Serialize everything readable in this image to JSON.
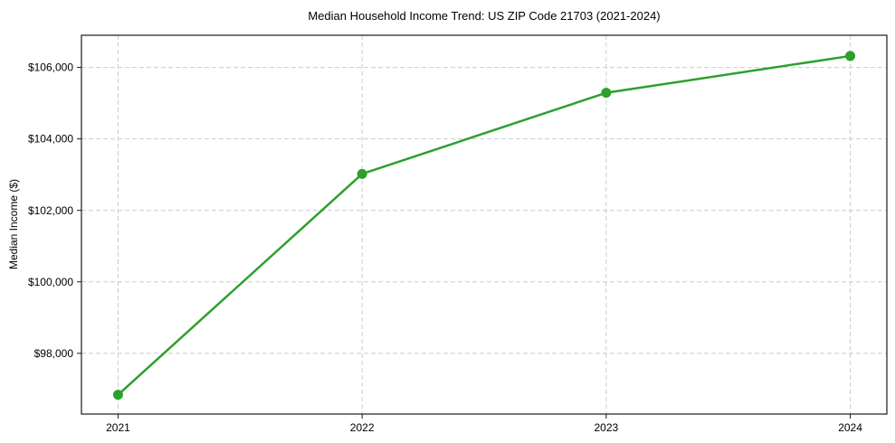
{
  "figure": {
    "background": "#ffffff"
  },
  "chart_data": {
    "type": "line",
    "title": "Median Household Income Trend: US ZIP Code 21703 (2021-2024)",
    "xlabel": "",
    "ylabel": "Median Income ($)",
    "x": [
      2021,
      2022,
      2023,
      2024
    ],
    "x_tick_labels": [
      "2021",
      "2022",
      "2023",
      "2024"
    ],
    "series": [
      {
        "name": "Median Household Income",
        "values": [
          96840,
          103020,
          105290,
          106320
        ]
      }
    ],
    "y_ticks": [
      {
        "value": 98000,
        "label": "$98,000"
      },
      {
        "value": 100000,
        "label": "$100,000"
      },
      {
        "value": 102000,
        "label": "$102,000"
      },
      {
        "value": 104000,
        "label": "$104,000"
      },
      {
        "value": 106000,
        "label": "$106,000"
      }
    ],
    "xlim": [
      2020.85,
      2024.15
    ],
    "ylim": [
      96300,
      106900
    ],
    "grid": true,
    "legend": "none",
    "line_color": "#2ca02c",
    "marker": "circle",
    "grid_color": "#cccccc",
    "spine_color": "#1a1a1a"
  }
}
